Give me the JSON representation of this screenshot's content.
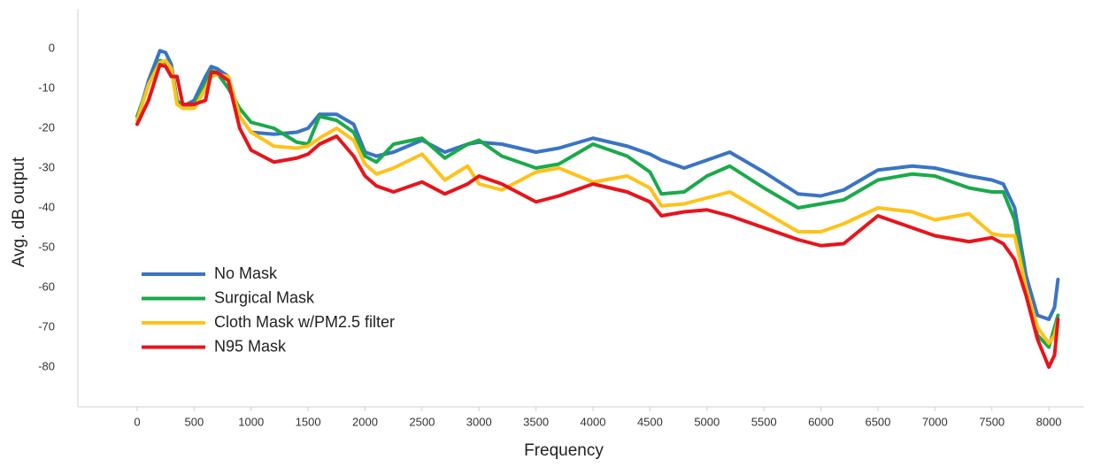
{
  "chart_data": {
    "type": "line",
    "x_label": "Frequency",
    "y_label": "Avg. dB output",
    "x": [
      0,
      100,
      200,
      250,
      300,
      350,
      400,
      500,
      600,
      650,
      700,
      800,
      900,
      1000,
      1200,
      1400,
      1500,
      1600,
      1750,
      1900,
      2000,
      2100,
      2250,
      2500,
      2700,
      2900,
      3000,
      3200,
      3500,
      3700,
      4000,
      4300,
      4500,
      4600,
      4800,
      5000,
      5200,
      5500,
      5800,
      6000,
      6200,
      6500,
      6800,
      7000,
      7300,
      7500,
      7600,
      7700,
      7800,
      7900,
      8000,
      8050,
      8080
    ],
    "series": [
      {
        "name": "No Mask",
        "color": "#3a74c4",
        "values": [
          -18,
          -8,
          -0.5,
          -1,
          -4,
          -13,
          -14.5,
          -13,
          -7,
          -4.5,
          -5,
          -7,
          -17,
          -21,
          -21.5,
          -21,
          -20,
          -16.5,
          -16.5,
          -19,
          -26,
          -27,
          -26,
          -23,
          -26,
          -24,
          -23.5,
          -24,
          -26,
          -25,
          -22.5,
          -24.5,
          -26.5,
          -28,
          -30,
          -28,
          -26,
          -31,
          -36.5,
          -37,
          -35.5,
          -30.5,
          -29.5,
          -30,
          -32,
          -33,
          -34,
          -40,
          -57,
          -67,
          -68,
          -65,
          -58
        ]
      },
      {
        "name": "Surgical Mask",
        "color": "#1aaa4a",
        "values": [
          -17,
          -9,
          -3,
          -3.5,
          -5,
          -13,
          -14.5,
          -14,
          -9,
          -5.5,
          -6,
          -10,
          -15,
          -18.5,
          -20,
          -23.5,
          -24,
          -17,
          -18,
          -21,
          -27,
          -28.5,
          -24,
          -22.5,
          -27.5,
          -24,
          -23,
          -27,
          -30,
          -29,
          -24,
          -27,
          -31,
          -36.5,
          -36,
          -32,
          -29.5,
          -35,
          -40,
          -39,
          -38,
          -33,
          -31.5,
          -32,
          -35,
          -36,
          -36,
          -43,
          -60,
          -72,
          -75,
          -70,
          -67
        ]
      },
      {
        "name": "Cloth Mask w/PM2.5 filter",
        "color": "#ffc21a",
        "values": [
          -18,
          -9,
          -3.5,
          -3,
          -5,
          -14,
          -15,
          -15,
          -10,
          -7,
          -6.5,
          -7,
          -17,
          -21,
          -24.5,
          -25,
          -24.5,
          -22.5,
          -20,
          -23,
          -29,
          -31.5,
          -30,
          -26.5,
          -33,
          -29.5,
          -34,
          -35.5,
          -31,
          -30,
          -33.5,
          -32,
          -35,
          -39.5,
          -39,
          -37.5,
          -36,
          -41,
          -46,
          -46,
          -44,
          -40,
          -41,
          -43,
          -41.5,
          -46.5,
          -47,
          -47,
          -60,
          -70,
          -74,
          -72,
          -68
        ]
      },
      {
        "name": "N95 Mask",
        "color": "#e8141b",
        "values": [
          -19,
          -13,
          -4,
          -4.5,
          -7,
          -7,
          -14,
          -14,
          -13,
          -6,
          -6,
          -8,
          -20,
          -25.5,
          -28.5,
          -27.5,
          -26.5,
          -24,
          -22,
          -27,
          -32,
          -34.5,
          -36,
          -33.5,
          -36.5,
          -34,
          -32,
          -34,
          -38.5,
          -37,
          -34,
          -36,
          -38.5,
          -42,
          -41,
          -40.5,
          -42,
          -45,
          -48,
          -49.5,
          -49,
          -42,
          -45,
          -47,
          -48.5,
          -47.5,
          -49,
          -53,
          -62,
          -73,
          -80,
          -77,
          -68
        ]
      }
    ],
    "xlim": [
      -520,
      8310
    ],
    "xticks": [
      0,
      500,
      1000,
      1500,
      2000,
      2500,
      3000,
      3500,
      4000,
      4500,
      5000,
      5500,
      6000,
      6500,
      7000,
      7500,
      8000
    ],
    "ylim": [
      -90,
      10
    ],
    "yticks": [
      -80,
      -70,
      -60,
      -50,
      -40,
      -30,
      -20,
      -10,
      0
    ],
    "grid": false,
    "legend": "lower left"
  }
}
